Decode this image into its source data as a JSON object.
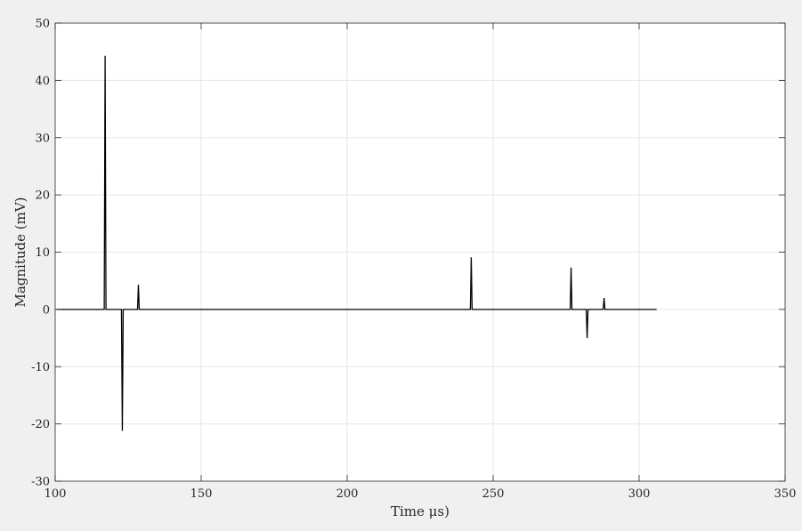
{
  "chart_data": {
    "type": "line",
    "title": "",
    "xlabel": "Time μs)",
    "ylabel": "Magnitude (mV)",
    "xlim": [
      100,
      350
    ],
    "ylim": [
      -30,
      50
    ],
    "xticks": [
      100,
      150,
      200,
      250,
      300,
      350
    ],
    "yticks": [
      50,
      40,
      30,
      20,
      10,
      0,
      -10,
      -20,
      -30
    ],
    "xtick_labels": [
      "100",
      "150",
      "200",
      "250",
      "300",
      "350"
    ],
    "ytick_labels": [
      "50",
      "40",
      "30",
      "20",
      "10",
      "0",
      "-10",
      "-20",
      "-30"
    ],
    "grid": true,
    "series": [
      {
        "color": "#000000",
        "x": [
          100.5,
          116.8,
          117.1,
          117.4,
          117.7,
          122.7,
          123.0,
          123.3,
          128.2,
          128.5,
          128.8,
          242.2,
          242.5,
          242.8,
          276.4,
          276.7,
          277.0,
          281.9,
          282.2,
          282.5,
          287.7,
          288.0,
          288.3,
          306.0
        ],
        "y": [
          0,
          0,
          44.3,
          0,
          0,
          0,
          -21.2,
          0,
          0,
          4.3,
          0,
          0,
          9.1,
          0,
          0,
          7.3,
          0,
          0,
          -5.0,
          0,
          0,
          2.0,
          0,
          0
        ]
      }
    ]
  }
}
